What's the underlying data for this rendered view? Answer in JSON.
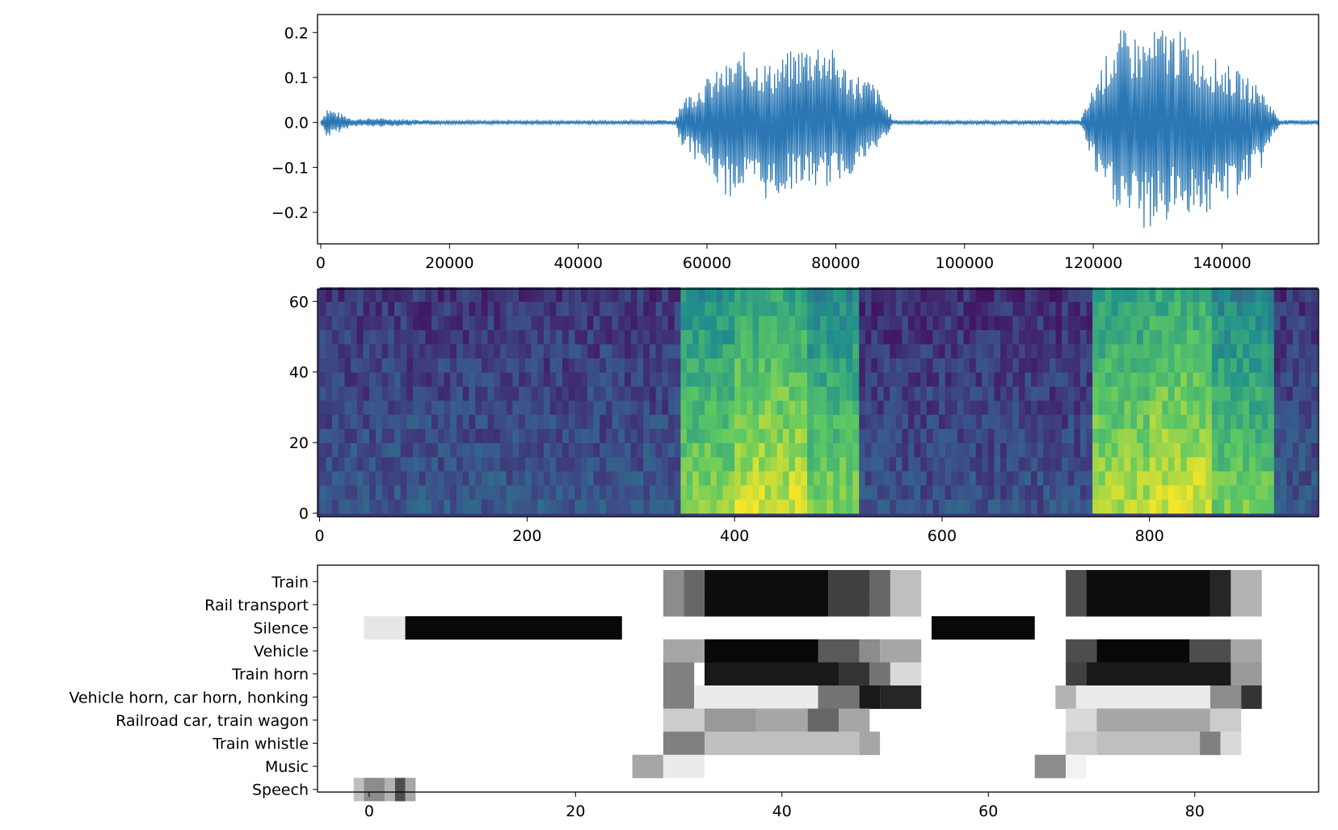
{
  "figure": {
    "panels_count": 3
  },
  "chart_data": [
    {
      "type": "line",
      "title": "",
      "xlabel": "",
      "ylabel": "",
      "xlim": [
        -500,
        155000
      ],
      "ylim": [
        -0.27,
        0.24
      ],
      "xticks": [
        0,
        20000,
        40000,
        60000,
        80000,
        100000,
        120000,
        140000
      ],
      "xtick_labels": [
        "0",
        "20000",
        "40000",
        "60000",
        "80000",
        "100000",
        "120000",
        "140000"
      ],
      "yticks": [
        0.2,
        0.1,
        0.0,
        -0.1,
        -0.2
      ],
      "ytick_labels": [
        "0.2",
        "0.1",
        "0.0",
        "−0.1",
        "−0.2"
      ],
      "grid": false,
      "series": [
        {
          "color": "#2a77b4",
          "x": [
            0,
            1000,
            5000,
            8000,
            20000,
            40000,
            55000,
            56000,
            60000,
            63000,
            66000,
            70000,
            74000,
            78000,
            82000,
            86000,
            89000,
            100000,
            118000,
            119000,
            121000,
            124000,
            128000,
            131000,
            134000,
            138000,
            142000,
            146000,
            148000,
            149000,
            155000
          ],
          "y_max": [
            0.005,
            0.035,
            0.008,
            0.01,
            0.004,
            0.004,
            0.005,
            0.05,
            0.1,
            0.13,
            0.16,
            0.13,
            0.17,
            0.19,
            0.12,
            0.09,
            0.005,
            0.004,
            0.005,
            0.04,
            0.12,
            0.21,
            0.19,
            0.22,
            0.2,
            0.15,
            0.12,
            0.08,
            0.03,
            0.005,
            0.005
          ],
          "y_min": [
            -0.005,
            -0.035,
            -0.008,
            -0.01,
            -0.004,
            -0.004,
            -0.005,
            -0.05,
            -0.11,
            -0.17,
            -0.15,
            -0.18,
            -0.14,
            -0.15,
            -0.12,
            -0.07,
            -0.005,
            -0.004,
            -0.005,
            -0.05,
            -0.15,
            -0.2,
            -0.245,
            -0.23,
            -0.2,
            -0.21,
            -0.17,
            -0.11,
            -0.03,
            -0.005,
            -0.005
          ]
        }
      ]
    },
    {
      "type": "heatmap",
      "title": "",
      "xlabel": "",
      "ylabel": "",
      "xlim": [
        -2,
        963
      ],
      "ylim": [
        -1,
        63.5
      ],
      "xticks": [
        0,
        200,
        400,
        600,
        800
      ],
      "xtick_labels": [
        "0",
        "200",
        "400",
        "600",
        "800"
      ],
      "yticks": [
        60,
        40,
        20,
        0
      ],
      "ytick_labels": [
        "60",
        "40",
        "20",
        "0"
      ],
      "colormap": [
        "#440154",
        "#3b528b",
        "#21918c",
        "#5ec962",
        "#fde725"
      ],
      "bands": [
        {
          "x_start": 0,
          "x_end": 348,
          "intensity": 0.3
        },
        {
          "x_start": 348,
          "x_end": 400,
          "intensity": 0.62
        },
        {
          "x_start": 400,
          "x_end": 470,
          "intensity": 0.72
        },
        {
          "x_start": 470,
          "x_end": 520,
          "intensity": 0.6
        },
        {
          "x_start": 520,
          "x_end": 745,
          "intensity": 0.28
        },
        {
          "x_start": 745,
          "x_end": 800,
          "intensity": 0.68
        },
        {
          "x_start": 800,
          "x_end": 860,
          "intensity": 0.73
        },
        {
          "x_start": 860,
          "x_end": 920,
          "intensity": 0.58
        },
        {
          "x_start": 920,
          "x_end": 962,
          "intensity": 0.3
        }
      ]
    },
    {
      "type": "heatmap",
      "title": "",
      "xlabel": "",
      "ylabel": "",
      "xlim": [
        -5,
        92
      ],
      "xticks": [
        0,
        20,
        40,
        60,
        80
      ],
      "xtick_labels": [
        "0",
        "20",
        "40",
        "60",
        "80"
      ],
      "categories": [
        "Train",
        "Rail transport",
        "Silence",
        "Vehicle",
        "Train horn",
        "Vehicle horn, car horn, honking",
        "Railroad car, train wagon",
        "Train whistle",
        "Music",
        "Speech"
      ],
      "colormap": [
        "#ffffff",
        "#000000"
      ],
      "rows": [
        {
          "label": "Train",
          "segments": [
            [
              29,
              31,
              0.45
            ],
            [
              31,
              33,
              0.6
            ],
            [
              33,
              45,
              0.95
            ],
            [
              45,
              49,
              0.75
            ],
            [
              49,
              51,
              0.6
            ],
            [
              51,
              54,
              0.25
            ],
            [
              68,
              70,
              0.7
            ],
            [
              70,
              82,
              0.95
            ],
            [
              82,
              84,
              0.85
            ],
            [
              84,
              87,
              0.3
            ]
          ]
        },
        {
          "label": "Rail transport",
          "segments": [
            [
              29,
              31,
              0.45
            ],
            [
              31,
              33,
              0.6
            ],
            [
              33,
              45,
              0.95
            ],
            [
              45,
              49,
              0.75
            ],
            [
              49,
              51,
              0.6
            ],
            [
              51,
              54,
              0.25
            ],
            [
              68,
              70,
              0.7
            ],
            [
              70,
              82,
              0.95
            ],
            [
              82,
              84,
              0.85
            ],
            [
              84,
              87,
              0.3
            ]
          ]
        },
        {
          "label": "Silence",
          "segments": [
            [
              0,
              4,
              0.1
            ],
            [
              4,
              25,
              0.97
            ],
            [
              55,
              65,
              0.97
            ]
          ]
        },
        {
          "label": "Vehicle",
          "segments": [
            [
              29,
              33,
              0.35
            ],
            [
              33,
              44,
              0.97
            ],
            [
              44,
              48,
              0.65
            ],
            [
              48,
              50,
              0.45
            ],
            [
              50,
              54,
              0.35
            ],
            [
              68,
              71,
              0.7
            ],
            [
              71,
              80,
              0.97
            ],
            [
              80,
              84,
              0.7
            ],
            [
              84,
              87,
              0.35
            ]
          ]
        },
        {
          "label": "Train horn",
          "segments": [
            [
              29,
              32,
              0.5
            ],
            [
              33,
              46,
              0.9
            ],
            [
              46,
              49,
              0.8
            ],
            [
              49,
              51,
              0.55
            ],
            [
              51,
              54,
              0.15
            ],
            [
              68,
              70,
              0.75
            ],
            [
              70,
              84,
              0.9
            ],
            [
              84,
              87,
              0.4
            ]
          ]
        },
        {
          "label": "Vehicle horn, car horn, honking",
          "segments": [
            [
              29,
              32,
              0.5
            ],
            [
              32,
              44,
              0.08
            ],
            [
              44,
              48,
              0.55
            ],
            [
              48,
              50,
              0.9
            ],
            [
              50,
              54,
              0.85
            ],
            [
              67,
              69,
              0.3
            ],
            [
              69,
              82,
              0.08
            ],
            [
              82,
              85,
              0.45
            ],
            [
              85,
              87,
              0.8
            ]
          ]
        },
        {
          "label": "Railroad car, train wagon",
          "segments": [
            [
              29,
              33,
              0.2
            ],
            [
              33,
              38,
              0.4
            ],
            [
              38,
              43,
              0.35
            ],
            [
              43,
              46,
              0.6
            ],
            [
              46,
              49,
              0.35
            ],
            [
              68,
              71,
              0.15
            ],
            [
              71,
              82,
              0.35
            ],
            [
              82,
              85,
              0.2
            ]
          ]
        },
        {
          "label": "Train whistle",
          "segments": [
            [
              29,
              33,
              0.5
            ],
            [
              33,
              48,
              0.25
            ],
            [
              48,
              50,
              0.35
            ],
            [
              68,
              71,
              0.2
            ],
            [
              71,
              81,
              0.25
            ],
            [
              81,
              83,
              0.5
            ],
            [
              83,
              85,
              0.15
            ]
          ]
        },
        {
          "label": "Music",
          "segments": [
            [
              26,
              29,
              0.35
            ],
            [
              29,
              33,
              0.08
            ],
            [
              65,
              68,
              0.45
            ],
            [
              68,
              70,
              0.05
            ]
          ]
        },
        {
          "label": "Speech",
          "segments": [
            [
              -1,
              0,
              0.25
            ],
            [
              0,
              2,
              0.45
            ],
            [
              2,
              3,
              0.3
            ],
            [
              3,
              4,
              0.7
            ],
            [
              4,
              5,
              0.35
            ]
          ]
        }
      ]
    }
  ]
}
